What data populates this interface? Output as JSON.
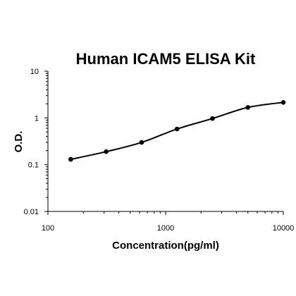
{
  "chart_data": {
    "type": "scatter",
    "title": "Human ICAM5 ELISA Kit",
    "xlabel": "Concentration(pg/ml)",
    "ylabel": "O.D.",
    "x_scale": "log",
    "y_scale": "log",
    "xlim": [
      100,
      10000
    ],
    "ylim": [
      0.01,
      10
    ],
    "x_ticks": [
      100,
      1000,
      10000
    ],
    "x_tick_labels": [
      "100",
      "1000",
      "10000"
    ],
    "y_ticks": [
      0.01,
      0.1,
      1,
      10
    ],
    "y_tick_labels": [
      "0.01",
      "0.1",
      "1",
      "10"
    ],
    "grid": false,
    "legend": "none",
    "series": [
      {
        "x": [
          156.25,
          312.5,
          625,
          1250,
          2500,
          5000,
          10000
        ],
        "y": [
          0.13,
          0.19,
          0.3,
          0.58,
          0.97,
          1.68,
          2.15
        ]
      }
    ],
    "colors": {
      "line": "#000000",
      "points": "#000000",
      "axis": "#000000"
    }
  }
}
